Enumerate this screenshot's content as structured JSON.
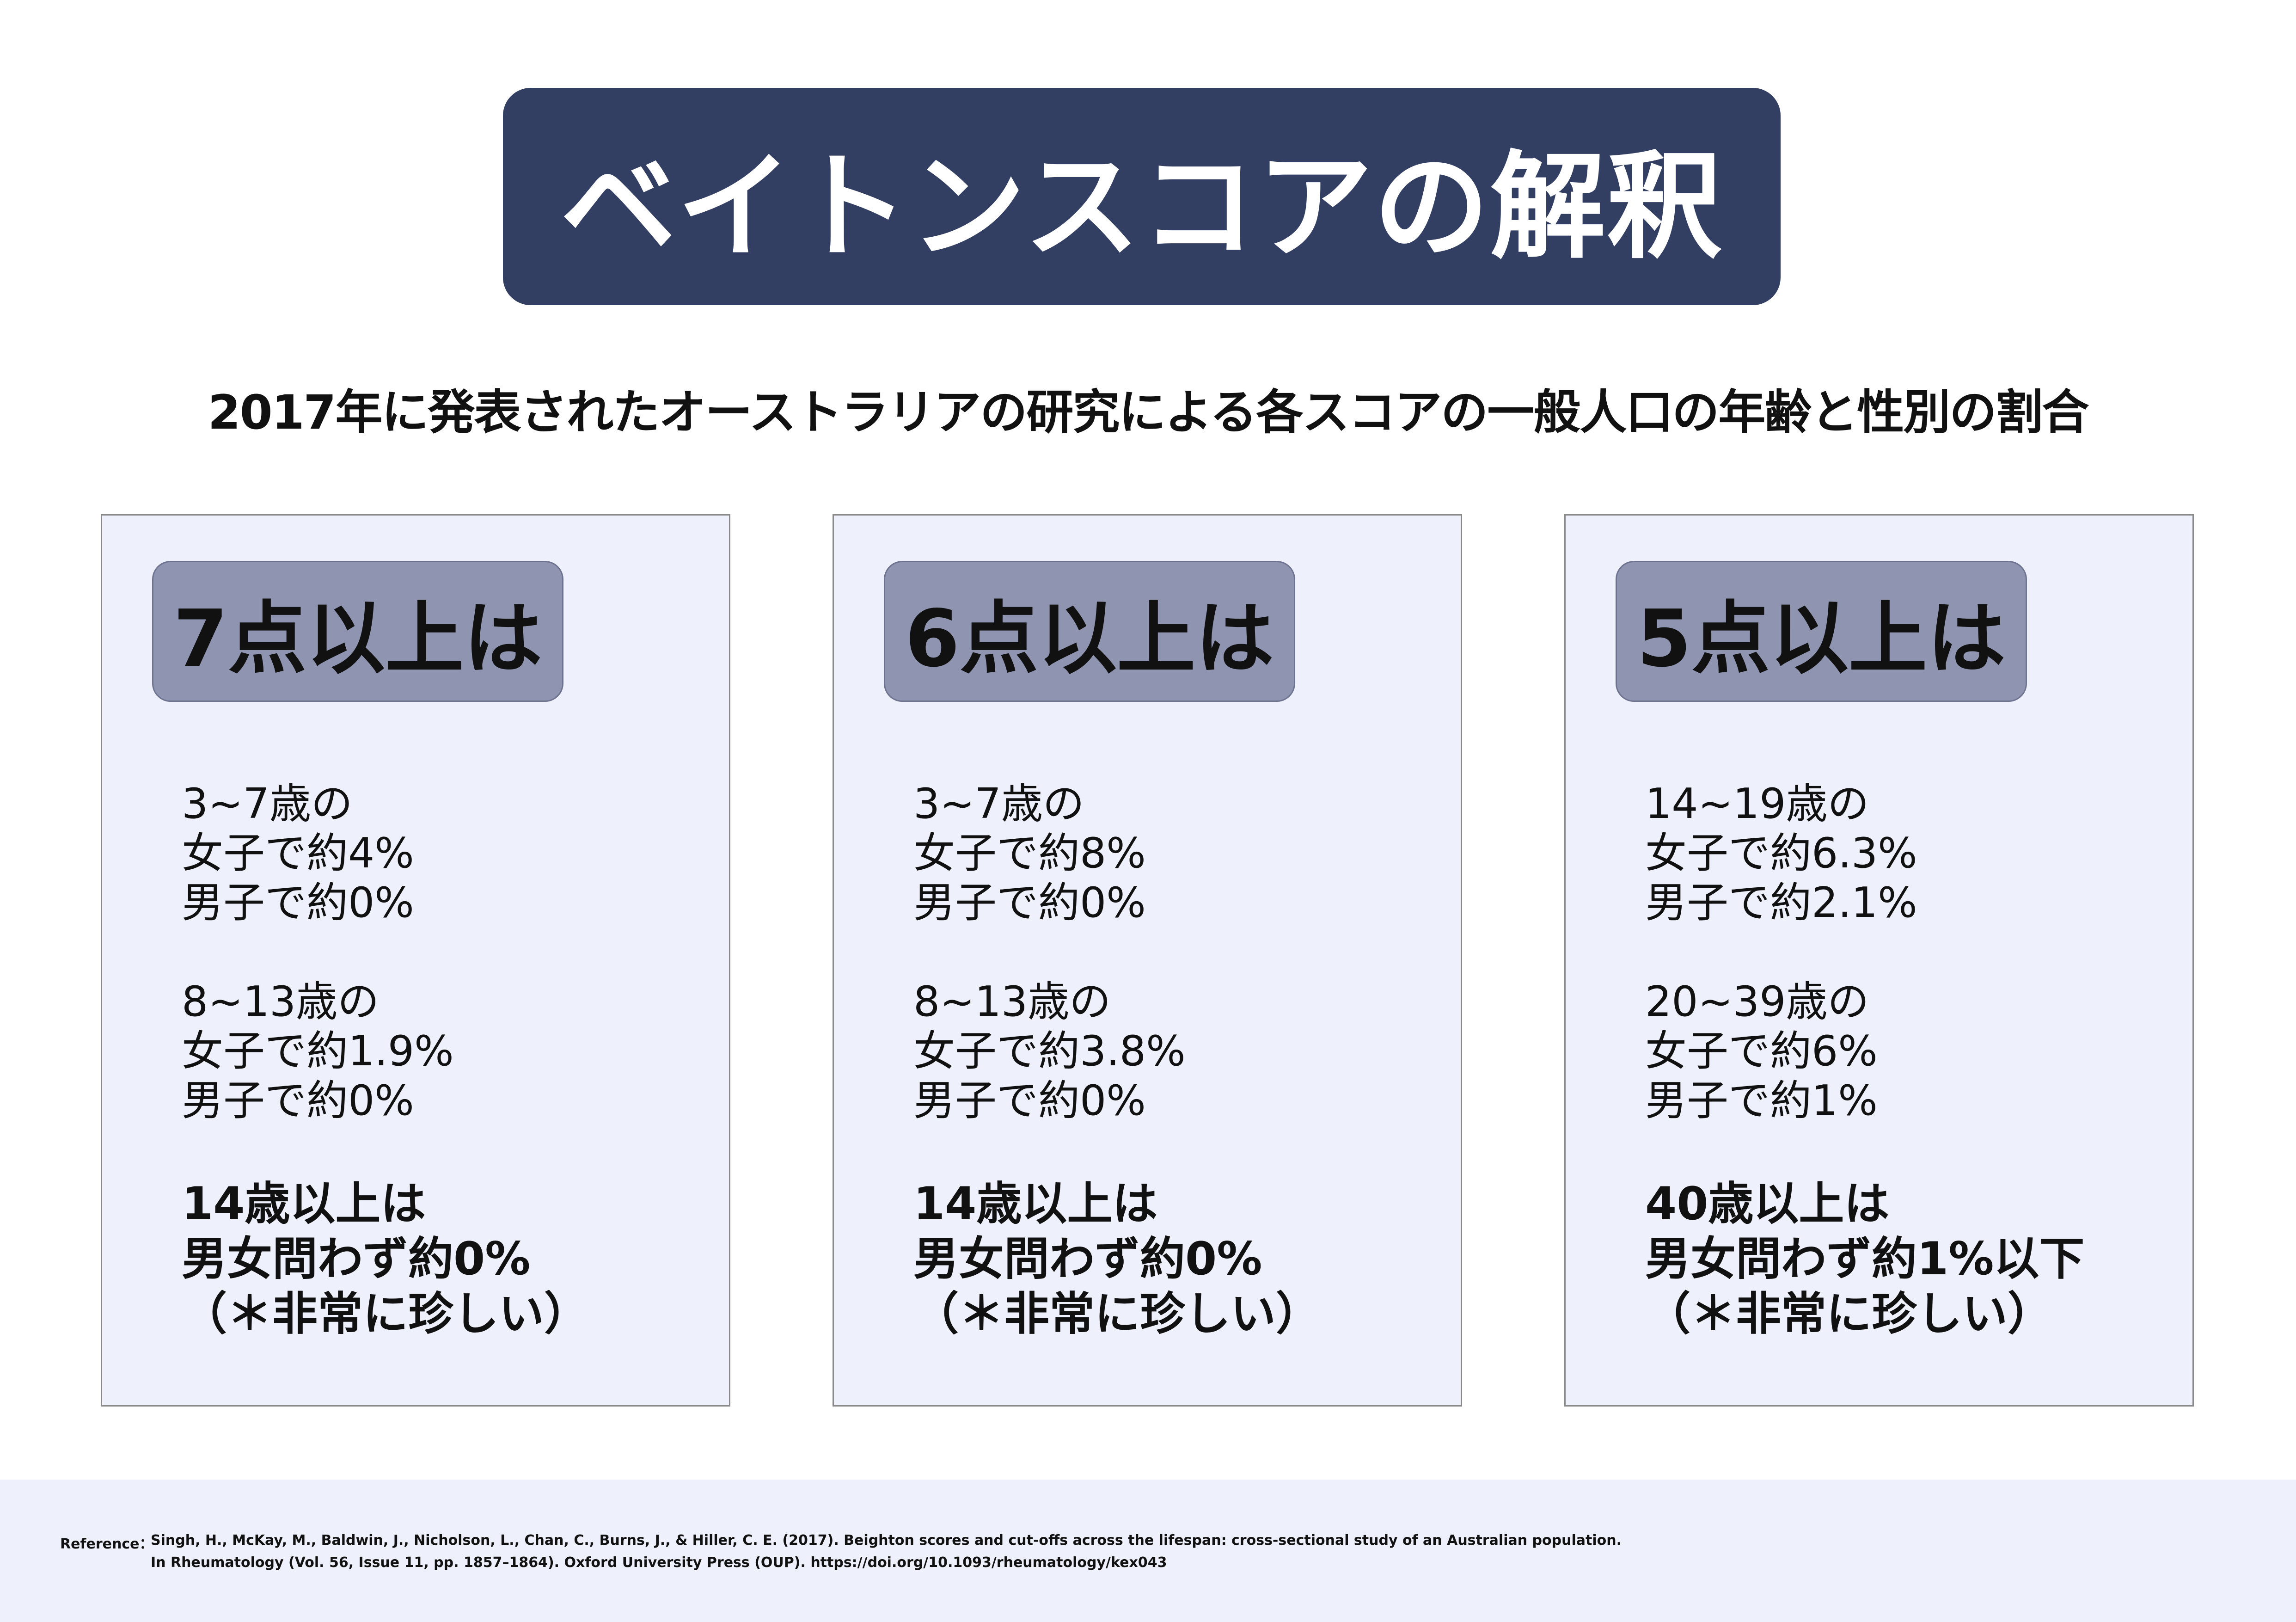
{
  "title": "ベイトンスコアの解釈",
  "subtitle": "2017年に発表されたオーストラリアの研究による各スコアの一般人口の年齢と性別の割合",
  "cards": [
    {
      "badge": "7点以上は",
      "group_a": [
        "3~7歳の",
        "女子で約4%",
        "男子で約0%"
      ],
      "group_b": [
        "8~13歳の",
        "女子で約1.9%",
        "男子で約0%"
      ],
      "group_c": [
        "14歳以上は",
        "男女問わず約0%",
        "（＊非常に珍しい）"
      ]
    },
    {
      "badge": "6点以上は",
      "group_a": [
        "3~7歳の",
        "女子で約8%",
        "男子で約0%"
      ],
      "group_b": [
        "8~13歳の",
        "女子で約3.8%",
        "男子で約0%"
      ],
      "group_c": [
        "14歳以上は",
        "男女問わず約0%",
        "（＊非常に珍しい）"
      ]
    },
    {
      "badge": "5点以上は",
      "group_a": [
        "14~19歳の",
        "女子で約6.3%",
        "男子で約2.1%"
      ],
      "group_b": [
        "20~39歳の",
        "女子で約6%",
        "男子で約1%"
      ],
      "group_c": [
        "40歳以上は",
        "男女問わず約1%以下",
        "（＊非常に珍しい）"
      ]
    }
  ],
  "reference": {
    "label": "Reference：",
    "line1": "Singh, H., McKay, M., Baldwin, J., Nicholson, L., Chan, C., Burns, J., & Hiller, C. E. (2017). Beighton scores and cut-offs across the lifespan: cross-sectional study of an Australian population.",
    "line2": "In Rheumatology (Vol. 56, Issue 11, pp. 1857–1864). Oxford University Press (OUP). https://doi.org/10.1093/rheumatology/kex043"
  },
  "colors": {
    "title_bg": "#323e62",
    "card_bg": "#eef1fb",
    "badge_bg": "#8f95b1",
    "footer_bg": "#eef1fb"
  }
}
